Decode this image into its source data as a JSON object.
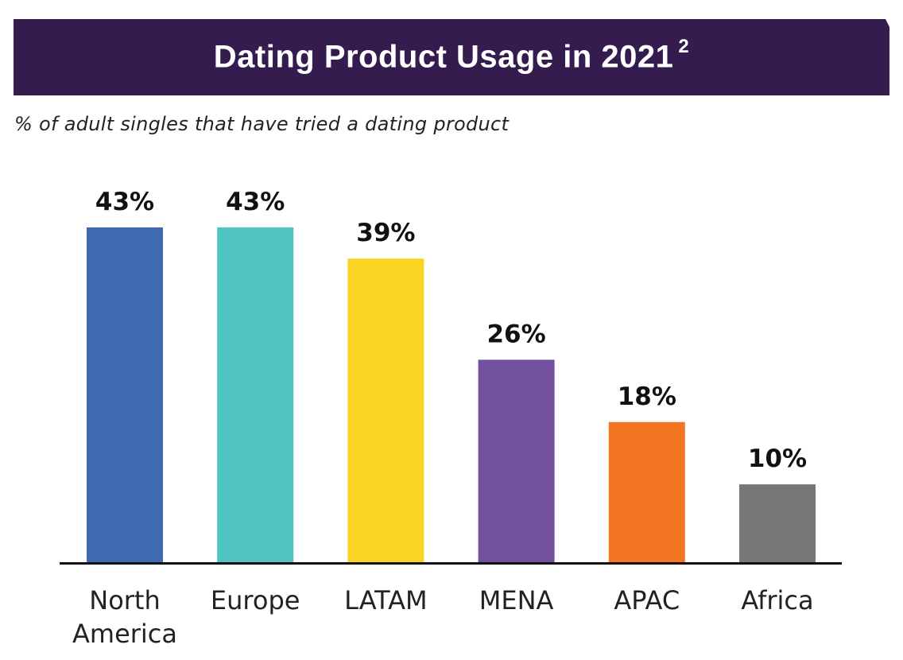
{
  "header": {
    "title": "Dating Product Usage in 2021",
    "title_superscript": "2",
    "subtitle": "% of adult singles that have tried a dating product"
  },
  "colors": {
    "banner": "#351c4f",
    "axis": "#111111"
  },
  "chart_data": {
    "type": "bar",
    "title": "Dating Product Usage in 2021",
    "subtitle": "% of adult singles that have tried a dating product",
    "xlabel": "",
    "ylabel": "",
    "ylim": [
      0,
      43
    ],
    "grid": false,
    "legend": "none",
    "categories": [
      "North America",
      "Europe",
      "LATAM",
      "MENA",
      "APAC",
      "Africa"
    ],
    "category_lines": [
      [
        "North",
        "America"
      ],
      [
        "Europe"
      ],
      [
        "LATAM"
      ],
      [
        "MENA"
      ],
      [
        "APAC"
      ],
      [
        "Africa"
      ]
    ],
    "values": [
      43,
      43,
      39,
      26,
      18,
      10
    ],
    "data_labels": [
      "43%",
      "43%",
      "39%",
      "26%",
      "18%",
      "10%"
    ],
    "bar_colors": [
      "#3f69b0",
      "#4ec3c0",
      "#f9d423",
      "#73509e",
      "#f37521",
      "#777777"
    ]
  }
}
